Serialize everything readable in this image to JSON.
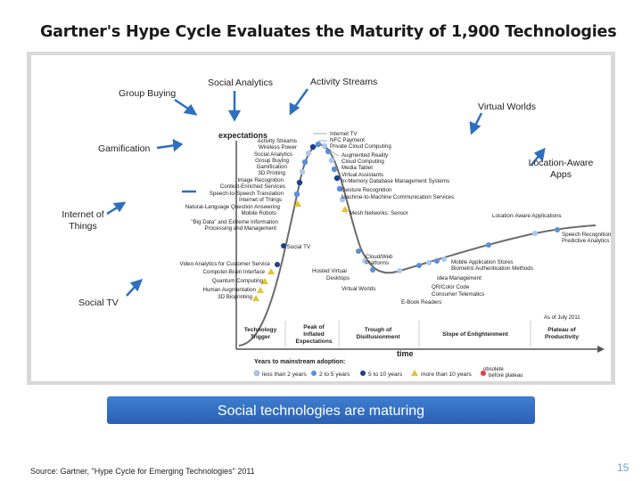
{
  "title": "Gartner's Hype Cycle Evaluates the Maturity of 1,900 Technologies",
  "callouts": {
    "group_buying": "Group Buying",
    "social_analytics": "Social Analytics",
    "activity_streams": "Activity Streams",
    "virtual_worlds": "Virtual Worlds",
    "gamification": "Gamification",
    "location_aware_line1": "Location-Aware",
    "location_aware_line2": "Apps",
    "internet_of_things_line1": "Internet of",
    "internet_of_things_line2": "Things",
    "social_tv": "Social TV"
  },
  "chart": {
    "ylabel": "expectations",
    "xlabel": "time",
    "as_of": "As of July 2011",
    "phases": {
      "trigger_1": "Technology",
      "trigger_2": "Trigger",
      "peak_1": "Peak of",
      "peak_2": "Inflated",
      "peak_3": "Expectations",
      "trough_1": "Trough of",
      "trough_2": "Disillusionment",
      "slope": "Slope of Enlightenment",
      "plateau_1": "Plateau of",
      "plateau_2": "Productivity"
    },
    "legend": {
      "title": "Years to mainstream adoption:",
      "less2": "less than 2 years",
      "two5": "2 to 5 years",
      "five10": "5 to 10 years",
      "more10": "more than 10 years",
      "obsolete_1": "obsolete",
      "obsolete_2": "before plateau"
    },
    "left_rise_labels": [
      "Activity Streams",
      "Wireless Power",
      "Social Analytics",
      "Group Buying",
      "Gamification",
      "3D Printing",
      "Image Recognition",
      "Context-Enriched Services",
      "Speech-to-Speech Translation",
      "Internet of Things",
      "Natural-Language Question Answering",
      "Mobile Robots",
      "\"Big Data\" and Extreme Information",
      "Processing and Management"
    ],
    "right_peak_labels": [
      "Internet TV",
      "NFC Payment",
      "Private Cloud Computing",
      "Augmented Reality",
      "Cloud Computing",
      "Media Tablet",
      "Virtual Assistants",
      "In-Memory Database Management Systems",
      "Gesture Recognition",
      "Machine-to-Machine Communication Services",
      "Mesh Networks: Sensor"
    ],
    "lower_left_labels": [
      "Social TV",
      "Video Analytics for Customer Service",
      "Computer-Brain Interface",
      "Quantum Computing",
      "Human Augmentation",
      "3D Bioprinting"
    ],
    "trough_labels": {
      "hosted_1": "Hosted Virtual",
      "hosted_2": "Desktops",
      "virtual_worlds": "Virtual Worlds",
      "cloudweb_1": "Cloud/Web",
      "cloudweb_2": "Platforms",
      "ebook": "E-Book Readers"
    },
    "slope_labels": [
      "Mobile Application Stores",
      "Biometric Authentication Methods",
      "Idea Management",
      "QR/Color Code",
      "Consumer Telematics",
      "Predictive Analytics",
      "Speech Recognition",
      "Location-Aware Applications"
    ]
  },
  "banner": "Social technologies are maturing",
  "source": "Source: Gartner, \"Hype Cycle for Emerging Technologies\" 2011",
  "page_number": "15",
  "colors": {
    "banner": "#2f6bc2",
    "arrow": "#2e6fc0",
    "dot_light": "#a9c8ec",
    "dot_mid": "#5a8fd8",
    "dot_dark": "#1e3f8a",
    "triangle": "#e5c232"
  }
}
